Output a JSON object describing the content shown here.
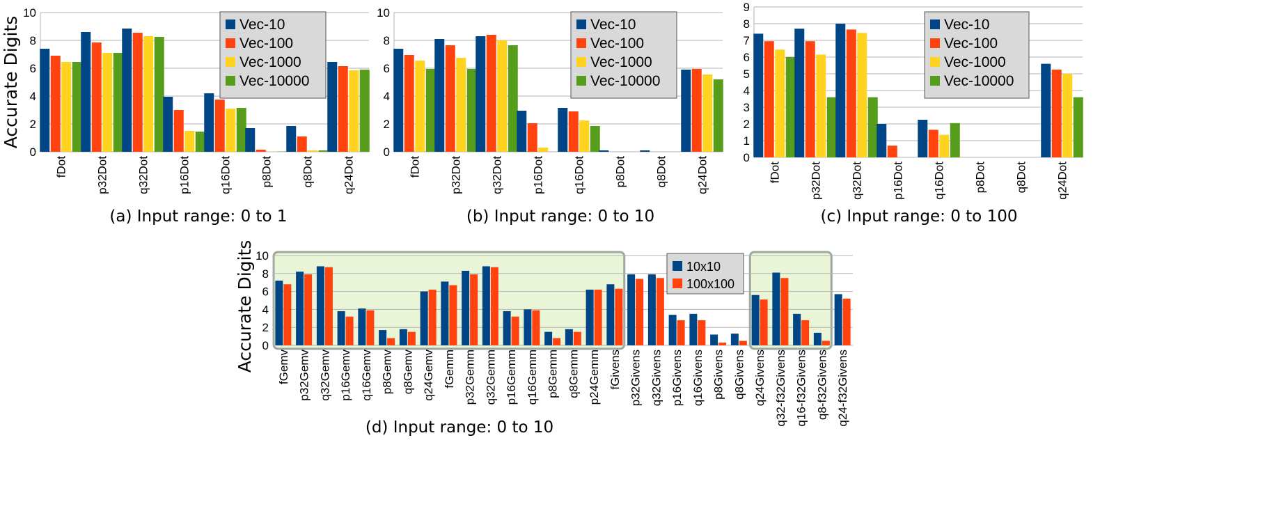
{
  "figure": {
    "y_label": "Accurate Digits"
  },
  "chart_data": [
    {
      "id": "a",
      "type": "bar",
      "caption": "(a) Input range: 0 to 1",
      "ylabel": "Accurate Digits",
      "ylim": [
        0,
        10
      ],
      "yticks": [
        0,
        2,
        4,
        6,
        8,
        10
      ],
      "grid": true,
      "legend_position": "top-right",
      "categories": [
        "fDot",
        "p32Dot",
        "q32Dot",
        "p16Dot",
        "q16Dot",
        "p8Dot",
        "q8Dot",
        "q24Dot"
      ],
      "series": [
        {
          "name": "Vec-10",
          "color": "#004586",
          "values": [
            7.4,
            8.6,
            8.85,
            3.95,
            4.2,
            1.7,
            1.85,
            6.45
          ]
        },
        {
          "name": "Vec-100",
          "color": "#ff420e",
          "values": [
            6.9,
            7.85,
            8.55,
            3.0,
            3.75,
            0.15,
            1.1,
            6.15
          ]
        },
        {
          "name": "Vec-1000",
          "color": "#ffd320",
          "values": [
            6.45,
            7.1,
            8.3,
            1.5,
            3.1,
            0.02,
            0.1,
            5.85
          ]
        },
        {
          "name": "Vec-10000",
          "color": "#579d1c",
          "values": [
            6.45,
            7.1,
            8.25,
            1.45,
            3.15,
            0.02,
            0.1,
            5.9
          ]
        }
      ]
    },
    {
      "id": "b",
      "type": "bar",
      "caption": "(b) Input range: 0 to 10",
      "ylim": [
        0,
        10
      ],
      "yticks": [
        0,
        2,
        4,
        6,
        8,
        10
      ],
      "grid": true,
      "legend_position": "top-right",
      "categories": [
        "fDot",
        "p32Dot",
        "q32Dot",
        "p16Dot",
        "q16Dot",
        "p8Dot",
        "q8Dot",
        "q24Dot"
      ],
      "series": [
        {
          "name": "Vec-10",
          "color": "#004586",
          "values": [
            7.4,
            8.1,
            8.3,
            2.95,
            3.15,
            0.1,
            0.1,
            5.9
          ]
        },
        {
          "name": "Vec-100",
          "color": "#ff420e",
          "values": [
            6.95,
            7.65,
            8.4,
            2.05,
            2.9,
            0.0,
            0.0,
            5.95
          ]
        },
        {
          "name": "Vec-1000",
          "color": "#ffd320",
          "values": [
            6.55,
            6.75,
            8.0,
            0.3,
            2.25,
            0.0,
            0.0,
            5.55
          ]
        },
        {
          "name": "Vec-10000",
          "color": "#579d1c",
          "values": [
            5.95,
            5.95,
            7.65,
            0.0,
            1.85,
            0.0,
            0.0,
            5.2
          ]
        }
      ]
    },
    {
      "id": "c",
      "type": "bar",
      "caption": "(c) Input range: 0 to 100",
      "ylim": [
        0,
        9
      ],
      "yticks": [
        0,
        1,
        2,
        3,
        4,
        5,
        6,
        7,
        8,
        9
      ],
      "grid": true,
      "legend_position": "top-right",
      "categories": [
        "fDot",
        "p32Dot",
        "q32Dot",
        "p16Dot",
        "q16Dot",
        "p8Dot",
        "q8Dot",
        "q24Dot"
      ],
      "series": [
        {
          "name": "Vec-10",
          "color": "#004586",
          "values": [
            7.4,
            7.7,
            8.0,
            2.0,
            2.25,
            0.0,
            0.0,
            5.6
          ]
        },
        {
          "name": "Vec-100",
          "color": "#ff420e",
          "values": [
            6.95,
            6.95,
            7.65,
            0.7,
            1.65,
            0.0,
            0.0,
            5.25
          ]
        },
        {
          "name": "Vec-1000",
          "color": "#ffd320",
          "values": [
            6.45,
            6.15,
            7.45,
            0.0,
            1.35,
            0.0,
            0.0,
            5.0
          ]
        },
        {
          "name": "Vec-10000",
          "color": "#579d1c",
          "values": [
            6.0,
            3.6,
            3.6,
            0.0,
            2.05,
            0.0,
            0.0,
            3.6
          ]
        }
      ]
    },
    {
      "id": "d",
      "type": "bar",
      "caption": "(d) Input range: 0 to 10",
      "ylabel": "Accurate Digits",
      "ylim": [
        0,
        10
      ],
      "yticks": [
        0,
        2,
        4,
        6,
        8,
        10
      ],
      "grid": true,
      "legend_position": "top-right",
      "highlight_groups": [
        [
          0,
          16
        ],
        [
          23,
          26
        ]
      ],
      "categories": [
        "fGemv",
        "p32Gemv",
        "q32Gemv",
        "p16Gemv",
        "q16Gemv",
        "p8Gemv",
        "q8Gemv",
        "q24Gemv",
        "fGemm",
        "p32Gemm",
        "q32Gemm",
        "p16Gemm",
        "q16Gemm",
        "p8Gemm",
        "q8Gemm",
        "p24Gemm",
        "fGivens",
        "p32Givens",
        "q32Givens",
        "p16Givens",
        "q16Givens",
        "p8Givens",
        "q8Givens",
        "q24Givens",
        "q32-f32Givens",
        "q16-f32Givens",
        "q8-f32Givens",
        "q24-f32Givens"
      ],
      "series": [
        {
          "name": "10x10",
          "color": "#004586",
          "values": [
            7.2,
            8.2,
            8.8,
            3.8,
            4.1,
            1.7,
            1.8,
            6.0,
            7.1,
            8.3,
            8.8,
            3.8,
            4.0,
            1.5,
            1.8,
            6.2,
            6.8,
            7.9,
            7.9,
            3.4,
            3.5,
            1.2,
            1.3,
            5.6,
            8.1,
            3.5,
            1.4,
            5.7
          ]
        },
        {
          "name": "100x100",
          "color": "#ff420e",
          "values": [
            6.8,
            7.9,
            8.7,
            3.2,
            3.9,
            0.8,
            1.5,
            6.2,
            6.7,
            7.9,
            8.7,
            3.2,
            3.9,
            0.8,
            1.5,
            6.2,
            6.3,
            7.4,
            7.5,
            2.8,
            2.8,
            0.3,
            0.5,
            5.1,
            7.5,
            2.8,
            0.5,
            5.2
          ]
        }
      ]
    }
  ]
}
